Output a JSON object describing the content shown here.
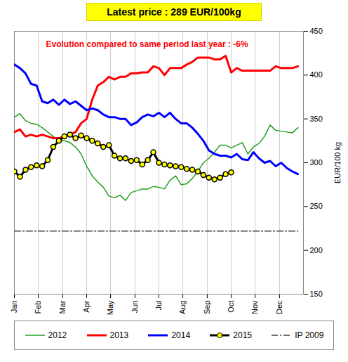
{
  "chart_data": {
    "type": "line",
    "title": "Latest price : 289 EUR/100kg",
    "subtitle": "Evolution compared to same period last year : -6%",
    "y_label": "EUR/100 kg",
    "x": [
      1,
      2,
      3,
      4,
      5,
      6,
      7,
      8,
      9,
      10,
      11,
      12,
      13,
      14,
      15,
      16,
      17,
      18,
      19,
      20,
      21,
      22,
      23,
      24,
      25,
      26,
      27,
      28,
      29,
      30,
      31,
      32,
      33,
      34,
      35,
      36,
      37,
      38,
      39,
      40,
      41,
      42,
      43,
      44,
      45,
      46,
      47,
      48,
      49,
      50,
      51,
      52
    ],
    "xlim": [
      1,
      53
    ],
    "xticks": [
      {
        "value": 1,
        "label": "Jan"
      },
      {
        "value": 5.3,
        "label": "Feb"
      },
      {
        "value": 9.7,
        "label": "Mar"
      },
      {
        "value": 14,
        "label": "Apr"
      },
      {
        "value": 18.3,
        "label": "May"
      },
      {
        "value": 22.7,
        "label": "Jun"
      },
      {
        "value": 27,
        "label": "Jul"
      },
      {
        "value": 31.3,
        "label": "Aug"
      },
      {
        "value": 35.7,
        "label": "Sep"
      },
      {
        "value": 40,
        "label": "Oct"
      },
      {
        "value": 44.3,
        "label": "Nov"
      },
      {
        "value": 48.7,
        "label": "Dec"
      }
    ],
    "ylim": [
      150,
      450
    ],
    "yticks": [
      150,
      200,
      250,
      300,
      350,
      400,
      450
    ],
    "grid": true,
    "legend": "bottom",
    "series": [
      {
        "name": "2012",
        "color": "#22a022",
        "line_style": "solid",
        "values": [
          352,
          356,
          348,
          345,
          344,
          340,
          335,
          330,
          326,
          325,
          323,
          318,
          310,
          296,
          285,
          278,
          272,
          262,
          260,
          263,
          257,
          266,
          268,
          270,
          270,
          273,
          272,
          270,
          280,
          285,
          275,
          276,
          282,
          290,
          300,
          305,
          312,
          320,
          320,
          317,
          320,
          323,
          310,
          318,
          322,
          330,
          343,
          337,
          336,
          335,
          334,
          340
        ]
      },
      {
        "name": "2013",
        "color": "#ff0000",
        "line_style": "solid",
        "values": [
          335,
          338,
          330,
          332,
          330,
          332,
          330,
          328,
          328,
          330,
          332,
          335,
          345,
          350,
          372,
          388,
          392,
          398,
          395,
          398,
          398,
          402,
          402,
          403,
          403,
          410,
          408,
          400,
          408,
          408,
          408,
          412,
          415,
          420,
          420,
          420,
          418,
          418,
          422,
          403,
          408,
          405,
          405,
          405,
          405,
          405,
          405,
          410,
          408,
          408,
          408,
          410
        ]
      },
      {
        "name": "2014",
        "color": "#0000ff",
        "line_style": "solid",
        "values": [
          412,
          408,
          402,
          390,
          388,
          370,
          368,
          372,
          366,
          372,
          367,
          370,
          365,
          360,
          362,
          360,
          355,
          352,
          352,
          350,
          350,
          343,
          346,
          352,
          355,
          353,
          357,
          352,
          357,
          350,
          345,
          345,
          340,
          333,
          325,
          314,
          310,
          308,
          308,
          306,
          310,
          304,
          303,
          312,
          305,
          300,
          302,
          296,
          300,
          294,
          290,
          287
        ]
      },
      {
        "name": "2015",
        "color": "#000000",
        "line_style": "solid",
        "marker": "circle",
        "values": [
          290,
          284,
          292,
          295,
          297,
          296,
          303,
          318,
          325,
          330,
          332,
          328,
          331,
          328,
          325,
          322,
          318,
          320,
          308,
          305,
          305,
          302,
          303,
          298,
          303,
          312,
          300,
          298,
          297,
          296,
          295,
          293,
          292,
          290,
          286,
          283,
          281,
          283,
          287,
          289,
          null,
          null,
          null,
          null,
          null,
          null,
          null,
          null,
          null,
          null,
          null,
          null
        ]
      },
      {
        "name": "IP 2009",
        "color": "#404040",
        "line_style": "dashdot",
        "values": [
          222,
          222,
          222,
          222,
          222,
          222,
          222,
          222,
          222,
          222,
          222,
          222,
          222,
          222,
          222,
          222,
          222,
          222,
          222,
          222,
          222,
          222,
          222,
          222,
          222,
          222,
          222,
          222,
          222,
          222,
          222,
          222,
          222,
          222,
          222,
          222,
          222,
          222,
          222,
          222,
          222,
          222,
          222,
          222,
          222,
          222,
          222,
          222,
          222,
          222,
          222,
          222
        ]
      }
    ]
  }
}
